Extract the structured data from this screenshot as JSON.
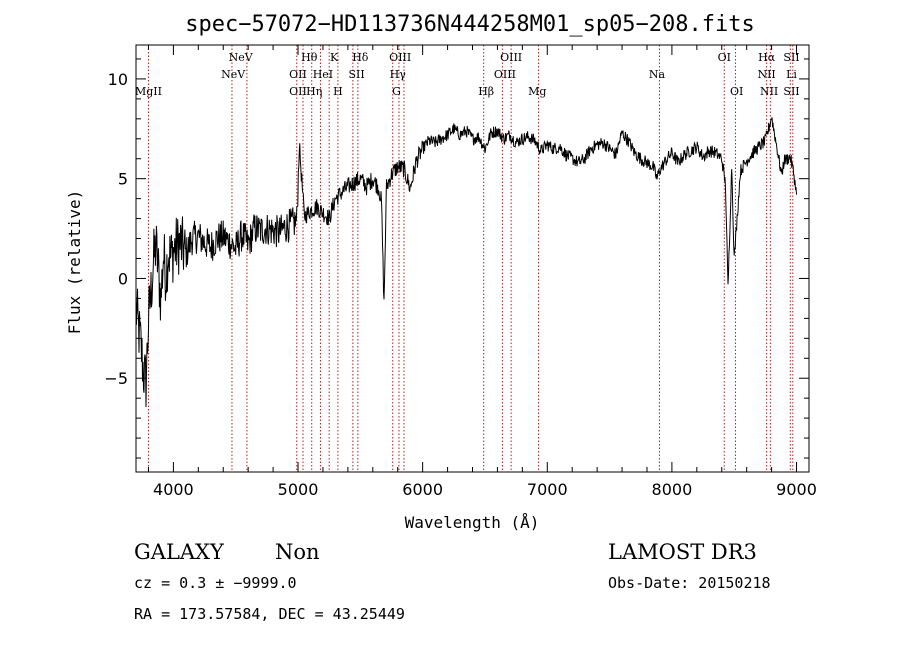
{
  "chart_data": {
    "type": "line",
    "title": "spec−57072−HD113736N444258M01_sp05−208.fits",
    "xlabel": "Wavelength (Å)",
    "ylabel": "Flux (relative)",
    "xlim": [
      3700,
      9100
    ],
    "ylim": [
      -9.7,
      11.7
    ],
    "xticks": [
      4000,
      5000,
      6000,
      7000,
      8000,
      9000
    ],
    "yticks": [
      -5,
      0,
      5,
      10
    ],
    "xtick_labels": [
      "4000",
      "5000",
      "6000",
      "7000",
      "8000",
      "9000"
    ],
    "ytick_labels": [
      "−5",
      "0",
      "5",
      "10"
    ],
    "grid": false,
    "series": [
      {
        "name": "spectrum",
        "color": "#000000",
        "x": [
          3700,
          3720,
          3740,
          3760,
          3780,
          3800,
          3820,
          3840,
          3860,
          3880,
          3900,
          3920,
          3940,
          3960,
          3980,
          4000,
          4050,
          4100,
          4150,
          4200,
          4250,
          4300,
          4350,
          4400,
          4450,
          4500,
          4550,
          4600,
          4650,
          4700,
          4750,
          4800,
          4850,
          4900,
          4950,
          4990,
          5010,
          5050,
          5100,
          5150,
          5200,
          5250,
          5300,
          5350,
          5400,
          5450,
          5500,
          5550,
          5600,
          5650,
          5670,
          5690,
          5710,
          5750,
          5800,
          5850,
          5900,
          5950,
          6000,
          6050,
          6100,
          6150,
          6200,
          6250,
          6300,
          6350,
          6400,
          6450,
          6500,
          6550,
          6600,
          6650,
          6700,
          6750,
          6800,
          6850,
          6900,
          6950,
          7000,
          7050,
          7100,
          7150,
          7200,
          7250,
          7300,
          7350,
          7400,
          7450,
          7500,
          7550,
          7600,
          7650,
          7700,
          7750,
          7800,
          7850,
          7880,
          7900,
          7950,
          8000,
          8050,
          8100,
          8150,
          8200,
          8250,
          8300,
          8350,
          8400,
          8430,
          8450,
          8480,
          8500,
          8550,
          8600,
          8650,
          8700,
          8750,
          8780,
          8800,
          8850,
          8880,
          8900,
          8950,
          8980,
          9000
        ],
        "y": [
          -1.5,
          -2.5,
          -3.4,
          -4.7,
          -5.2,
          -2.1,
          -0.7,
          0.8,
          1.7,
          0.4,
          -1.1,
          1.2,
          0.2,
          1.4,
          1.0,
          1.4,
          1.8,
          1.2,
          2.0,
          2.1,
          1.8,
          1.6,
          2.0,
          2.1,
          1.8,
          1.5,
          2.2,
          1.7,
          2.5,
          2.4,
          2.5,
          2.4,
          2.3,
          2.6,
          2.7,
          2.9,
          6.7,
          3.1,
          3.4,
          3.6,
          3.3,
          3.0,
          4.0,
          4.3,
          4.6,
          4.8,
          5.0,
          4.6,
          5.0,
          4.5,
          3.8,
          -1.3,
          4.6,
          5.2,
          5.6,
          5.5,
          4.5,
          5.9,
          6.5,
          6.9,
          6.8,
          7.0,
          7.2,
          7.5,
          7.2,
          7.4,
          7.0,
          7.1,
          6.5,
          7.3,
          7.4,
          7.0,
          7.2,
          6.8,
          7.0,
          7.1,
          6.9,
          6.4,
          6.7,
          6.5,
          6.6,
          6.2,
          6.0,
          5.8,
          6.0,
          6.5,
          6.7,
          6.8,
          6.5,
          6.2,
          7.3,
          6.9,
          6.3,
          6.0,
          5.8,
          5.6,
          5.0,
          5.4,
          5.9,
          6.3,
          5.8,
          6.2,
          6.4,
          6.6,
          6.1,
          6.4,
          6.3,
          6.0,
          4.7,
          -0.5,
          5.7,
          1.0,
          5.4,
          5.9,
          6.3,
          6.6,
          6.9,
          7.6,
          8.1,
          6.3,
          5.2,
          5.9,
          6.1,
          5.2,
          4.2
        ]
      }
    ],
    "annotations": [
      {
        "text": "MgII",
        "x": 3800,
        "row": 3
      },
      {
        "text": "NeV",
        "x": 4540,
        "row": 1
      },
      {
        "text": "NeV",
        "x": 4480,
        "row": 2
      },
      {
        "text": "Hθ",
        "x": 5090,
        "row": 1
      },
      {
        "text": "OII",
        "x": 5000,
        "row": 2
      },
      {
        "text": "OII",
        "x": 5000,
        "row": 3
      },
      {
        "text": "HeI",
        "x": 5200,
        "row": 2
      },
      {
        "text": "Hη",
        "x": 5130,
        "row": 3
      },
      {
        "text": "K",
        "x": 5290,
        "row": 1
      },
      {
        "text": "H",
        "x": 5320,
        "row": 3
      },
      {
        "text": "Hδ",
        "x": 5500,
        "row": 1
      },
      {
        "text": "SII",
        "x": 5470,
        "row": 2
      },
      {
        "text": "OIII",
        "x": 5820,
        "row": 1
      },
      {
        "text": "Hγ",
        "x": 5800,
        "row": 2
      },
      {
        "text": "G",
        "x": 5790,
        "row": 3
      },
      {
        "text": "OIII",
        "x": 6710,
        "row": 1
      },
      {
        "text": "OIII",
        "x": 6660,
        "row": 2
      },
      {
        "text": "Hβ",
        "x": 6510,
        "row": 3
      },
      {
        "text": "Mg",
        "x": 6920,
        "row": 3
      },
      {
        "text": "Na",
        "x": 7880,
        "row": 2
      },
      {
        "text": "OI",
        "x": 8420,
        "row": 1
      },
      {
        "text": "OI",
        "x": 8520,
        "row": 3
      },
      {
        "text": "Hα",
        "x": 8760,
        "row": 1
      },
      {
        "text": "SII",
        "x": 8960,
        "row": 1
      },
      {
        "text": "NII",
        "x": 8760,
        "row": 2
      },
      {
        "text": "Li",
        "x": 8960,
        "row": 2
      },
      {
        "text": "NII",
        "x": 8780,
        "row": 3
      },
      {
        "text": "SII",
        "x": 8960,
        "row": 3
      }
    ],
    "line_markers": {
      "color": "#b22222",
      "x": [
        3800,
        4470,
        4590,
        4990,
        5040,
        5110,
        5180,
        5250,
        5320,
        5440,
        5480,
        5760,
        5810,
        5850,
        6490,
        6640,
        6710,
        6930,
        7900,
        8420,
        8510,
        8760,
        8790,
        8950,
        8970
      ]
    }
  },
  "footer": {
    "class": "GALAXY",
    "subclass": "Non",
    "survey": "LAMOST DR3",
    "cz": "cz = 0.3 ± −9999.0",
    "obs_date": "Obs-Date: 20150218",
    "coords": "RA = 173.57584, DEC =  43.25449"
  }
}
